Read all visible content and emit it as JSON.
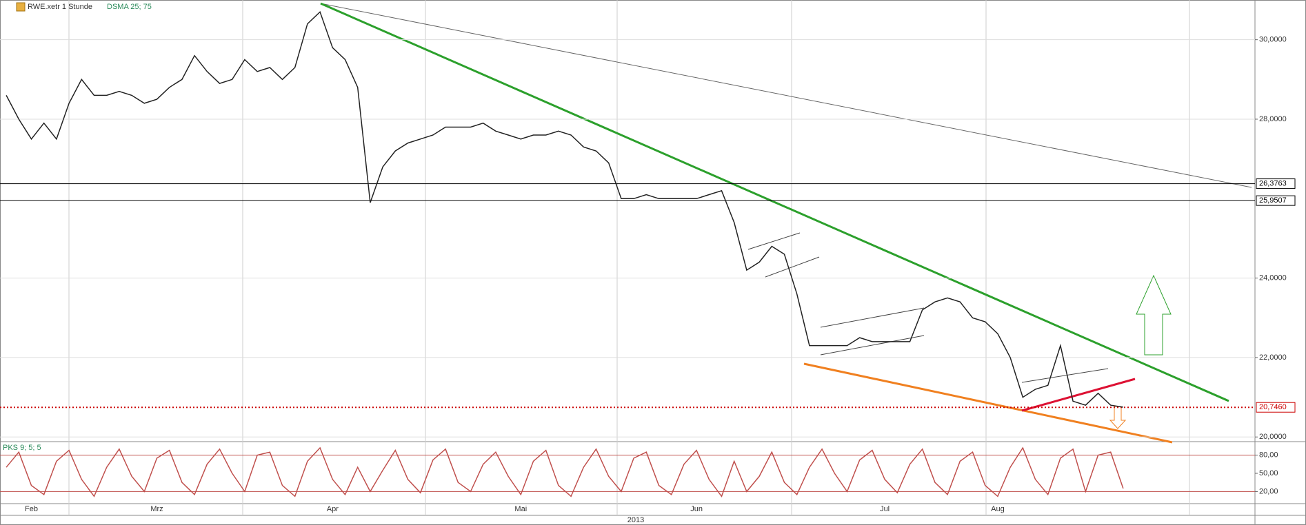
{
  "chart_data": [
    {
      "type": "line",
      "title": "RWE.xetr 1 Stunde",
      "indicator": "DSMA 25; 75",
      "year_label": "2013",
      "categories": [
        null,
        null,
        "Feb",
        null,
        null,
        null,
        null,
        null,
        null,
        null,
        null,
        null,
        "Mrz",
        null,
        null,
        null,
        null,
        null,
        null,
        null,
        null,
        null,
        null,
        null,
        null,
        null,
        "Apr",
        null,
        null,
        null,
        null,
        null,
        null,
        null,
        null,
        null,
        null,
        null,
        null,
        null,
        null,
        "Mai",
        null,
        null,
        null,
        null,
        null,
        null,
        null,
        null,
        null,
        null,
        null,
        null,
        null,
        "Jun",
        null,
        null,
        null,
        null,
        null,
        null,
        null,
        null,
        null,
        null,
        null,
        null,
        null,
        null,
        "Jul",
        null,
        null,
        null,
        null,
        null,
        null,
        null,
        null,
        "Aug",
        null,
        null,
        null,
        null,
        null,
        null,
        null,
        null,
        null,
        null,
        null,
        null,
        null,
        null,
        null,
        null,
        null,
        null,
        null,
        null
      ],
      "series": [
        {
          "color": "#222222",
          "values": [
            28.6,
            28.0,
            27.5,
            27.9,
            27.5,
            28.4,
            29.0,
            28.6,
            28.6,
            28.7,
            28.6,
            28.4,
            28.5,
            28.8,
            29.0,
            29.6,
            29.2,
            28.9,
            29.0,
            29.5,
            29.2,
            29.3,
            29.0,
            29.3,
            30.4,
            30.7,
            29.8,
            29.5,
            28.8,
            25.9,
            26.8,
            27.2,
            27.4,
            27.5,
            27.6,
            27.8,
            27.8,
            27.8,
            27.9,
            27.7,
            27.6,
            27.5,
            27.6,
            27.6,
            27.7,
            27.6,
            27.3,
            27.2,
            26.9,
            26.0,
            26.0,
            26.1,
            26.0,
            26.0,
            26.0,
            26.0,
            26.1,
            26.2,
            25.4,
            24.2,
            24.4,
            24.8,
            24.6,
            23.6,
            22.3,
            22.3,
            22.3,
            22.3,
            22.5,
            22.4,
            22.4,
            22.4,
            22.4,
            23.2,
            23.4,
            23.5,
            23.4,
            23.0,
            22.9,
            22.6,
            22.0,
            21.0,
            21.2,
            21.3,
            22.3,
            20.9,
            20.8,
            21.1,
            20.8,
            20.75,
            null,
            null,
            null,
            null,
            null,
            null,
            null,
            null,
            null,
            null
          ]
        }
      ],
      "ylim": [
        19.9,
        31.0
      ],
      "yticks": [
        {
          "value": 20,
          "label": "20,0000"
        },
        {
          "value": 22,
          "label": "22,0000"
        },
        {
          "value": 24,
          "label": "24,0000"
        },
        {
          "value": 28,
          "label": "28,0000"
        },
        {
          "value": 30,
          "label": "30,0000"
        }
      ],
      "levels": [
        {
          "value": 26.3763,
          "label": "26,3763",
          "color": "#000000"
        },
        {
          "value": 25.9507,
          "label": "25,9507",
          "color": "#000000"
        },
        {
          "value": 20.746,
          "label": "20,7460",
          "color": "#cc0000"
        }
      ],
      "grid": true
    },
    {
      "type": "line",
      "title": "PKS 9; 5; 5",
      "series": [
        {
          "color": "#c0504d",
          "values": [
            60,
            85,
            30,
            15,
            70,
            88,
            40,
            12,
            60,
            90,
            45,
            20,
            75,
            88,
            35,
            15,
            65,
            90,
            50,
            20,
            80,
            85,
            30,
            12,
            70,
            92,
            40,
            15,
            60,
            20,
            55,
            88,
            40,
            18,
            72,
            90,
            35,
            20,
            65,
            85,
            45,
            15,
            70,
            88,
            30,
            12,
            60,
            90,
            45,
            20,
            75,
            85,
            30,
            15,
            65,
            88,
            40,
            12,
            70,
            20,
            45,
            85,
            35,
            15,
            60,
            90,
            50,
            20,
            72,
            88,
            40,
            18,
            65,
            90,
            35,
            15,
            70,
            85,
            30,
            12,
            60,
            92,
            40,
            15,
            75,
            90,
            20,
            80,
            85,
            25,
            null,
            null,
            null,
            null,
            null,
            null,
            null,
            null,
            null,
            null
          ]
        }
      ],
      "ylim": [
        0,
        100
      ],
      "yticks": [
        {
          "value": 20,
          "label": "20,00"
        },
        {
          "value": 50,
          "label": "50,00"
        },
        {
          "value": 80,
          "label": "80,00"
        }
      ]
    }
  ]
}
